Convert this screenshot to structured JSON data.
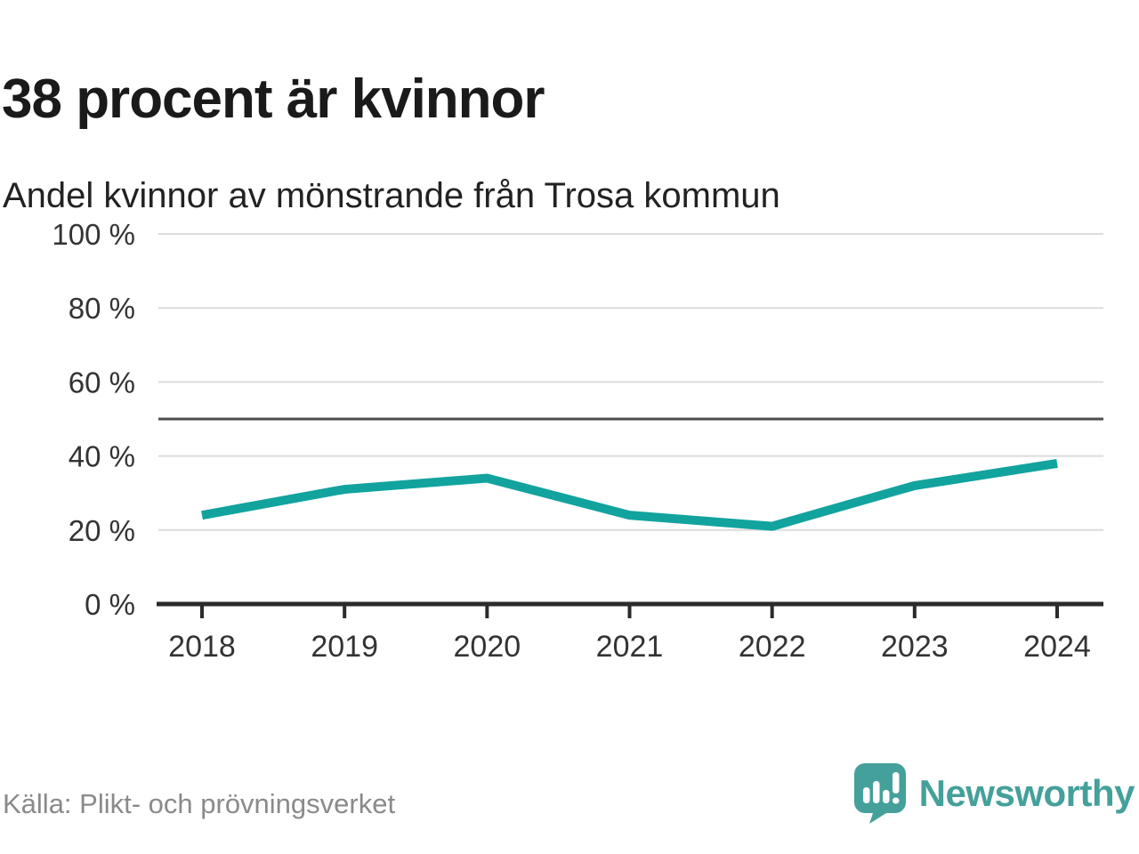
{
  "header": {
    "title": "38 procent är kvinnor",
    "subtitle": "Andel kvinnor av mönstrande från Trosa kommun"
  },
  "chart_data": {
    "type": "line",
    "title": "38 procent är kvinnor",
    "subtitle": "Andel kvinnor av mönstrande från Trosa kommun",
    "categories": [
      "2018",
      "2019",
      "2020",
      "2021",
      "2022",
      "2023",
      "2024"
    ],
    "values": [
      24,
      31,
      34,
      24,
      21,
      32,
      38
    ],
    "unit": "%",
    "ylim": [
      0,
      100
    ],
    "yticks": [
      0,
      20,
      40,
      60,
      80,
      100
    ],
    "ytick_suffix": " %",
    "ytick_labels": [
      "0 %",
      "20 %",
      "40 %",
      "60 %",
      "80 %",
      "100 %"
    ],
    "reference_line": 50,
    "grid": true,
    "legend": "none",
    "line_color": "#12a39e"
  },
  "footer": {
    "source": "Källa: Plikt- och prövningsverket",
    "brand": "Newsworthy"
  },
  "colors": {
    "accent_line": "#12a39e",
    "logo_teal": "#44a09a",
    "grid": "#dcdcdc",
    "axis": "#2b2b2b",
    "reference": "#4d4d4d",
    "tick_text": "#333333",
    "title_text": "#1a1a1a",
    "muted_text": "#8a8a8a"
  }
}
